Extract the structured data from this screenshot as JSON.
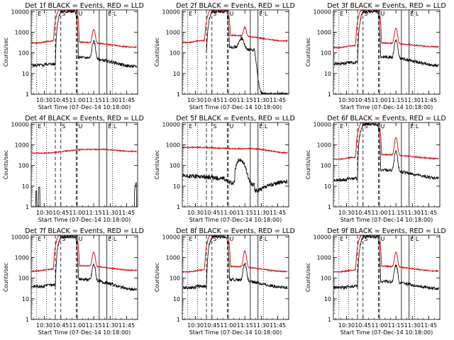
{
  "figure": {
    "events_color": "#000000",
    "lld_color": "#dd0000",
    "background": "#ffffff"
  },
  "common": {
    "xlabel": "Start Time (07-Dec-14 10:18:00)",
    "ylabel": "Counts/sec",
    "x_ticks": [
      {
        "t": 30,
        "label": "10:30"
      },
      {
        "t": 45,
        "label": "10:45"
      },
      {
        "t": 60,
        "label": "11:00"
      },
      {
        "t": 75,
        "label": "11:15"
      },
      {
        "t": 90,
        "label": "11:30"
      },
      {
        "t": 105,
        "label": "11:45"
      }
    ],
    "y_ticks": [
      {
        "v": 1,
        "label": "1"
      },
      {
        "v": 10,
        "label": "10"
      },
      {
        "v": 100,
        "label": "100"
      },
      {
        "v": 1000,
        "label": "1000"
      },
      {
        "v": 10000,
        "label": "10000"
      }
    ],
    "xlim_minutes_after_10_00": [
      18,
      115
    ],
    "ylim": [
      1,
      12000
    ],
    "y_scale": "log",
    "markers": [
      {
        "t": 23,
        "style": "dotted",
        "label": "E"
      },
      {
        "t": 32,
        "style": "dotted",
        "label": ""
      },
      {
        "t": 40,
        "style": "dashed",
        "label": ""
      },
      {
        "t": 45,
        "style": "dashed",
        "label": "S"
      },
      {
        "t": 59,
        "style": "dashed",
        "label": ""
      },
      {
        "t": 60,
        "style": "dashed",
        "label": "U"
      },
      {
        "t": 80,
        "style": "solid",
        "label": ""
      },
      {
        "t": 87,
        "style": "solid",
        "label": "E"
      },
      {
        "t": 92,
        "style": "dotted",
        "label": "L"
      }
    ]
  },
  "chart_data": [
    {
      "type": "line",
      "title": "Det 1f BLACK = Events, RED = LLD",
      "shape": "flare",
      "lld": {
        "base": 300,
        "peak": 12000,
        "post": 330,
        "spike": 1050,
        "end": 190
      },
      "events": {
        "base": 25,
        "peak": 10000,
        "post": 60,
        "spike": 300,
        "end": 22,
        "floor": 1,
        "mode": "flare"
      }
    },
    {
      "type": "line",
      "title": "Det 2f BLACK = Events, RED = LLD",
      "shape": "flare2",
      "lld": {
        "base": 320,
        "peak": 12000,
        "post": 700,
        "spike": 1100,
        "end": 380
      },
      "events": {
        "base": 0,
        "peak": 10000,
        "post": 250,
        "spike": 350,
        "end": 1,
        "floor": 1,
        "mode": "flare2"
      }
    },
    {
      "type": "line",
      "title": "Det 3f BLACK = Events, RED = LLD",
      "shape": "flare",
      "lld": {
        "base": 180,
        "peak": 12000,
        "post": 300,
        "spike": 1300,
        "end": 200
      },
      "events": {
        "base": 30,
        "peak": 10000,
        "post": 65,
        "spike": 350,
        "end": 25,
        "floor": 1,
        "mode": "flare"
      }
    },
    {
      "type": "line",
      "title": "Det 4f BLACK = Events, RED = LLD",
      "shape": "flat",
      "lld": {
        "base": 400,
        "peak": 800,
        "post": 600,
        "spike": 650,
        "end": 480
      },
      "events": {
        "base": 1,
        "peak": 8,
        "post": 1,
        "spike": 1,
        "end": 1,
        "floor": 1,
        "mode": "sparse"
      }
    },
    {
      "type": "line",
      "title": "Det 5f BLACK = Events, RED = LLD",
      "shape": "flat",
      "lld": {
        "base": 750,
        "peak": 1000,
        "post": 650,
        "spike": 600,
        "end": 420
      },
      "events": {
        "base": 30,
        "peak": 20,
        "post": 20,
        "spike": 180,
        "end": 14,
        "floor": 1,
        "mode": "dip"
      }
    },
    {
      "type": "line",
      "title": "Det 6f BLACK = Events, RED = LLD",
      "shape": "flare",
      "lld": {
        "base": 200,
        "peak": 12000,
        "post": 340,
        "spike": 1900,
        "end": 220
      },
      "events": {
        "base": 20,
        "peak": 10000,
        "post": 60,
        "spike": 400,
        "end": 25,
        "floor": 1,
        "mode": "flare"
      }
    },
    {
      "type": "line",
      "title": "Det 7f BLACK = Events, RED = LLD",
      "shape": "flare",
      "lld": {
        "base": 220,
        "peak": 12000,
        "post": 400,
        "spike": 1450,
        "end": 240
      },
      "events": {
        "base": 40,
        "peak": 10000,
        "post": 90,
        "spike": 380,
        "end": 28,
        "floor": 1,
        "mode": "flare"
      }
    },
    {
      "type": "line",
      "title": "Det 8f BLACK = Events, RED = LLD",
      "shape": "flare",
      "lld": {
        "base": 200,
        "peak": 12000,
        "post": 370,
        "spike": 1700,
        "end": 210
      },
      "events": {
        "base": 35,
        "peak": 10000,
        "post": 85,
        "spike": 420,
        "end": 35,
        "floor": 1,
        "mode": "flare"
      }
    },
    {
      "type": "line",
      "title": "Det 9f BLACK = Events, RED = LLD",
      "shape": "flare",
      "lld": {
        "base": 200,
        "peak": 12000,
        "post": 380,
        "spike": 1400,
        "end": 220
      },
      "events": {
        "base": 35,
        "peak": 10000,
        "post": 70,
        "spike": 360,
        "end": 32,
        "floor": 1,
        "mode": "flare"
      }
    }
  ]
}
